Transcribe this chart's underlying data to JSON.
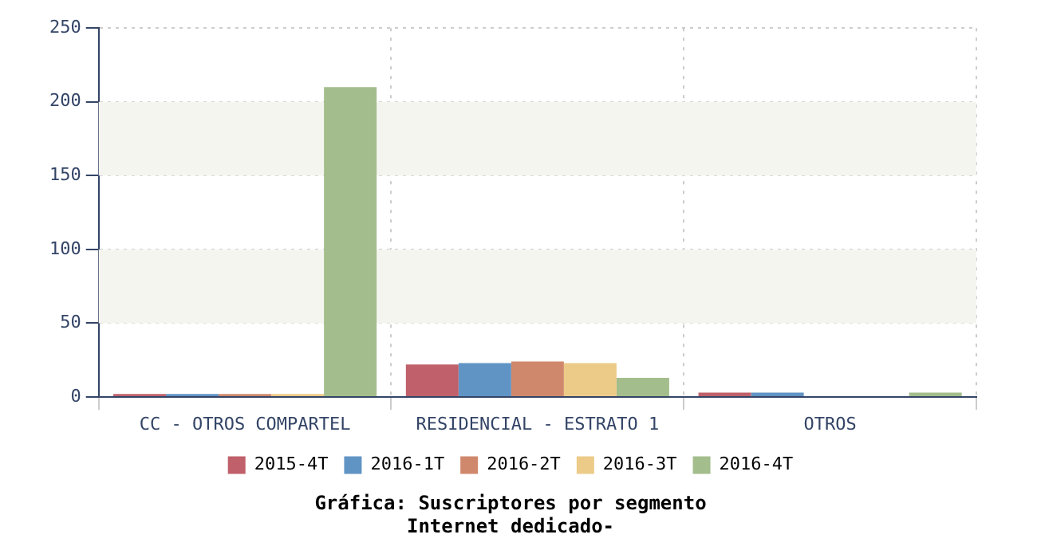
{
  "chart_data": {
    "type": "bar",
    "title": "Gráfica: Suscriptores por segmento",
    "subtitle": "Internet dedicado-",
    "categories": [
      "CC - OTROS COMPARTEL",
      "RESIDENCIAL - ESTRATO 1",
      "OTROS"
    ],
    "series": [
      {
        "name": "2015-4T",
        "color": "#c0606a",
        "values": [
          2,
          22,
          3
        ]
      },
      {
        "name": "2016-1T",
        "color": "#6094c4",
        "values": [
          2,
          23,
          3
        ]
      },
      {
        "name": "2016-2T",
        "color": "#d0886c",
        "values": [
          2,
          24,
          null
        ]
      },
      {
        "name": "2016-3T",
        "color": "#eccb88",
        "values": [
          2,
          23,
          null
        ]
      },
      {
        "name": "2016-4T",
        "color": "#a4bd8c",
        "values": [
          210,
          13,
          3
        ]
      }
    ],
    "ylim": [
      0,
      250
    ],
    "yticks": [
      0,
      50,
      100,
      150,
      200,
      250
    ],
    "grid": true,
    "legend": "bottom"
  }
}
